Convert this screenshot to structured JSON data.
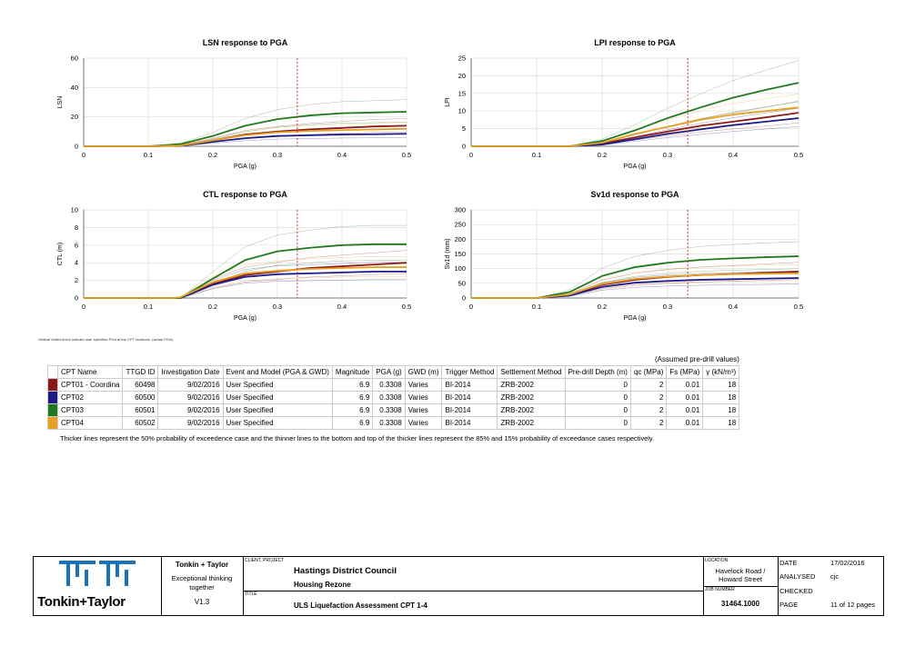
{
  "colors": {
    "cpt01": "#8b1a1a",
    "cpt02": "#1a1a8b",
    "cpt03": "#1f7a1f",
    "cpt04": "#e8a020",
    "limit": "#cc2222",
    "brand": "#1a73b8"
  },
  "chart_data": [
    {
      "type": "line",
      "title": "LSN response to PGA",
      "xlabel": "PGA (g)",
      "ylabel": "LSN",
      "xlim": [
        0,
        0.5
      ],
      "ylim": [
        0,
        60
      ],
      "x_ticks": [
        "0",
        "0.1",
        "0.2",
        "0.3",
        "0.4",
        "0.5"
      ],
      "y_ticks": [
        "0",
        "20",
        "40",
        "60"
      ],
      "vline": 0.3308,
      "x": [
        0.1,
        0.15,
        0.2,
        0.25,
        0.3,
        0.35,
        0.4,
        0.45,
        0.5
      ],
      "series": [
        {
          "values": [
            0,
            0.5,
            4,
            8,
            10,
            11.5,
            12.5,
            13.5,
            14
          ]
        },
        {
          "values": [
            0,
            0.3,
            3,
            5.5,
            7,
            7.5,
            8,
            8.2,
            8.5
          ]
        },
        {
          "values": [
            0,
            1.5,
            7,
            14,
            18.5,
            21,
            22.5,
            23,
            23.5
          ]
        },
        {
          "values": [
            0,
            0.5,
            4,
            7.5,
            9.5,
            10.5,
            11,
            11.5,
            12
          ]
        }
      ]
    },
    {
      "type": "line",
      "title": "LPI response to PGA",
      "xlabel": "PGA (g)",
      "ylabel": "LPI",
      "xlim": [
        0,
        0.5
      ],
      "ylim": [
        0,
        25
      ],
      "x_ticks": [
        "0",
        "0.1",
        "0.2",
        "0.3",
        "0.4",
        "0.5"
      ],
      "y_ticks": [
        "0",
        "5",
        "10",
        "15",
        "20",
        "25"
      ],
      "vline": 0.3308,
      "x": [
        0.1,
        0.15,
        0.2,
        0.25,
        0.3,
        0.35,
        0.4,
        0.45,
        0.5
      ],
      "series": [
        {
          "values": [
            0,
            0,
            0.8,
            2.5,
            4.2,
            5.8,
            7,
            8.2,
            9.5
          ]
        },
        {
          "values": [
            0,
            0,
            0.5,
            2,
            3.5,
            4.8,
            6,
            7,
            8
          ]
        },
        {
          "values": [
            0,
            0,
            1.5,
            4.5,
            8,
            11,
            13.8,
            16,
            18
          ]
        },
        {
          "values": [
            0,
            0,
            1,
            3.5,
            5.5,
            7.5,
            9,
            10,
            11
          ]
        }
      ]
    },
    {
      "type": "line",
      "title": "CTL response to PGA",
      "xlabel": "PGA (g)",
      "ylabel": "CTL (m)",
      "xlim": [
        0,
        0.5
      ],
      "ylim": [
        0,
        10
      ],
      "x_ticks": [
        "0",
        "0.1",
        "0.2",
        "0.3",
        "0.4",
        "0.5"
      ],
      "y_ticks": [
        "0",
        "2",
        "4",
        "6",
        "8",
        "10"
      ],
      "vline": 0.3308,
      "x": [
        0.14,
        0.15,
        0.2,
        0.25,
        0.3,
        0.35,
        0.4,
        0.45,
        0.5
      ],
      "series": [
        {
          "values": [
            0,
            0,
            1.6,
            2.6,
            3,
            3.4,
            3.6,
            3.8,
            4
          ]
        },
        {
          "values": [
            0,
            0,
            1.5,
            2.4,
            2.7,
            2.8,
            2.9,
            3,
            3
          ]
        },
        {
          "values": [
            0,
            0,
            2.2,
            4.3,
            5.3,
            5.7,
            6,
            6.1,
            6.1
          ]
        },
        {
          "values": [
            0,
            0.1,
            1.8,
            2.8,
            3.1,
            3.3,
            3.4,
            3.5,
            3.5
          ]
        }
      ]
    },
    {
      "type": "line",
      "title": "Sv1d response to PGA",
      "xlabel": "PGA (g)",
      "ylabel": "Sv1d (mm)",
      "xlim": [
        0,
        0.5
      ],
      "ylim": [
        0,
        300
      ],
      "x_ticks": [
        "0",
        "0.1",
        "0.2",
        "0.3",
        "0.4",
        "0.5"
      ],
      "y_ticks": [
        "0",
        "50",
        "100",
        "150",
        "200",
        "250",
        "300"
      ],
      "vline": 0.3308,
      "x": [
        0.1,
        0.15,
        0.2,
        0.25,
        0.3,
        0.35,
        0.4,
        0.45,
        0.5
      ],
      "series": [
        {
          "values": [
            0,
            10,
            45,
            62,
            72,
            78,
            82,
            86,
            90
          ]
        },
        {
          "values": [
            0,
            8,
            38,
            52,
            58,
            62,
            64,
            66,
            68
          ]
        },
        {
          "values": [
            0,
            20,
            75,
            105,
            120,
            130,
            135,
            139,
            142
          ]
        },
        {
          "values": [
            0,
            12,
            48,
            65,
            73,
            78,
            81,
            83,
            84
          ]
        }
      ]
    }
  ],
  "note": "Vertical dotted line/s indicate user specified PGA at the CPT locations. (actual PGA)",
  "table": {
    "assumed_label": "(Assumed pre-drill values)",
    "headers": [
      "CPT Name",
      "TTGD ID",
      "Investigation Date",
      "Event and Model (PGA & GWD)",
      "Magnitude",
      "PGA (g)",
      "GWD (m)",
      "Trigger Method",
      "Settlement Method",
      "Pre-drill Depth (m)",
      "qc (MPa)",
      "Fs (MPa)",
      "γ (kN/m³)"
    ],
    "rows": [
      {
        "name": "CPT01 - Coordina",
        "id": "60498",
        "date": "9/02/2016",
        "event": "User Specified",
        "mag": "6.9",
        "pga": "0.3308",
        "gwd": "Varies",
        "trigger": "BI-2014",
        "settle": "ZRB-2002",
        "depth": "0",
        "qc": "2",
        "fs": "0.01",
        "gamma": "18"
      },
      {
        "name": "CPT02",
        "id": "60500",
        "date": "9/02/2016",
        "event": "User Specified",
        "mag": "6.9",
        "pga": "0.3308",
        "gwd": "Varies",
        "trigger": "BI-2014",
        "settle": "ZRB-2002",
        "depth": "0",
        "qc": "2",
        "fs": "0.01",
        "gamma": "18"
      },
      {
        "name": "CPT03",
        "id": "60501",
        "date": "9/02/2016",
        "event": "User Specified",
        "mag": "6.9",
        "pga": "0.3308",
        "gwd": "Varies",
        "trigger": "BI-2014",
        "settle": "ZRB-2002",
        "depth": "0",
        "qc": "2",
        "fs": "0.01",
        "gamma": "18"
      },
      {
        "name": "CPT04",
        "id": "60502",
        "date": "9/02/2016",
        "event": "User Specified",
        "mag": "6.9",
        "pga": "0.3308",
        "gwd": "Varies",
        "trigger": "BI-2014",
        "settle": "ZRB-2002",
        "depth": "0",
        "qc": "2",
        "fs": "0.01",
        "gamma": "18"
      }
    ],
    "footnote": "Thicker lines represent the 50% probability of exceedence case and the thinner lines to the bottom and top of the thicker lines represent the 85% and 15% probability of exceedance cases respectively."
  },
  "title_block": {
    "company": "Tonkin + Taylor",
    "tagline": "Exceptional thinking together",
    "version": "V1.3",
    "logo_text": "Tonkin+Taylor",
    "client_label": "CLIENT, PROJECT",
    "client": "Hastings District Council",
    "project": "Housing Rezone",
    "title_label": "TITLE",
    "title": "ULS Liquefaction Assessment CPT 1-4",
    "location_label": "LOCATION",
    "location": "Havelock Road / Howard Street",
    "job_label": "JOB NUMBER",
    "job": "31464.1000",
    "date_label": "DATE",
    "date": "17/02/2016",
    "analysed_label": "ANALYSED",
    "analysed": "cjc",
    "checked_label": "CHECKED",
    "checked": "",
    "page_label": "PAGE",
    "page": "11 of 12 pages"
  }
}
